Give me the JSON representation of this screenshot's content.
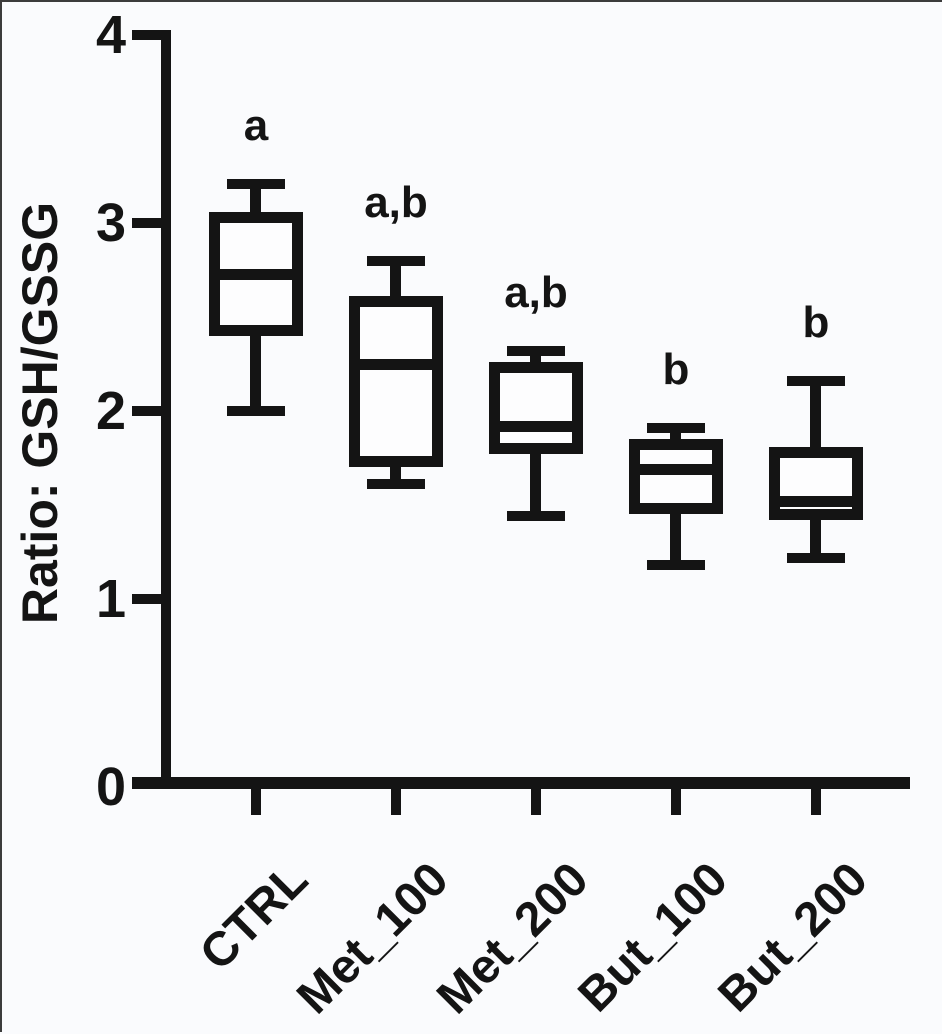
{
  "colors": {
    "stroke": "#141414",
    "background": "#fafbfd"
  },
  "chart_data": {
    "type": "box",
    "title": "",
    "xlabel": "",
    "ylabel": "Ratio: GSH/GSSG",
    "ylim": [
      0,
      4
    ],
    "yticks": [
      0,
      1,
      2,
      3,
      4
    ],
    "grid": false,
    "legend": false,
    "categories": [
      "CTRL",
      "Met_100",
      "Met_200",
      "But_100",
      "But_200"
    ],
    "series": [
      {
        "category": "CTRL",
        "sig_label": "a",
        "whisker_low": 2.0,
        "q1": 2.4,
        "median": 2.73,
        "q3": 3.06,
        "whisker_high": 3.21
      },
      {
        "category": "Met_100",
        "sig_label": "a,b",
        "whisker_low": 1.61,
        "q1": 1.7,
        "median": 2.25,
        "q3": 2.61,
        "whisker_high": 2.8
      },
      {
        "category": "Met_200",
        "sig_label": "a,b",
        "whisker_low": 1.44,
        "q1": 1.77,
        "median": 1.92,
        "q3": 2.26,
        "whisker_high": 2.32
      },
      {
        "category": "But_100",
        "sig_label": "b",
        "whisker_low": 1.18,
        "q1": 1.45,
        "median": 1.69,
        "q3": 1.85,
        "whisker_high": 1.91
      },
      {
        "category": "But_200",
        "sig_label": "b",
        "whisker_low": 1.22,
        "q1": 1.42,
        "median": 1.52,
        "q3": 1.81,
        "whisker_high": 2.16
      }
    ]
  }
}
